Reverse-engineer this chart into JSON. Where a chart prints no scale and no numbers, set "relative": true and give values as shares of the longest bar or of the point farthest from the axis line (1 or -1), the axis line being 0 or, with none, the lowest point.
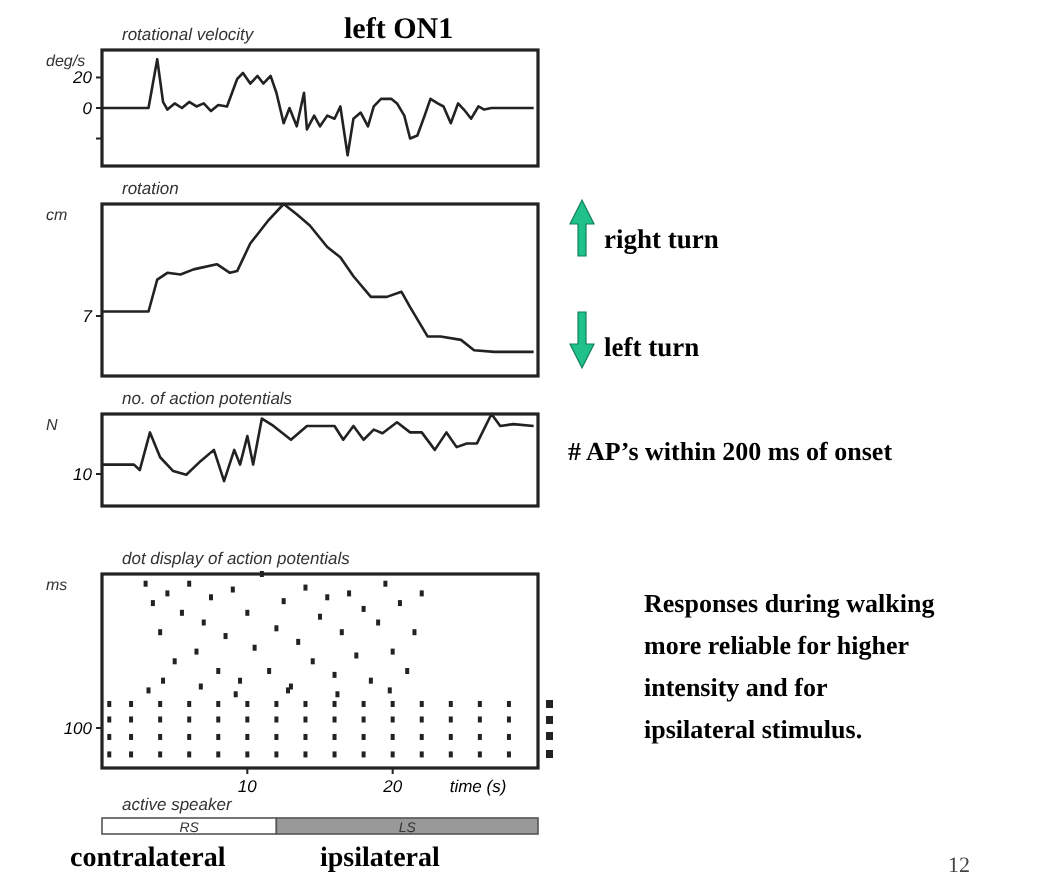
{
  "chart_data": [
    {
      "type": "line",
      "title": "rotational velocity",
      "ylabel": "deg/s",
      "annotations": [
        "left ON1"
      ],
      "xlim": [
        0,
        30
      ],
      "ylim": [
        -38,
        38
      ],
      "yticks": [
        {
          "value": -20,
          "label": null
        },
        0,
        20
      ],
      "tick_labels": "y",
      "color": "#222222",
      "x": [
        0,
        3.2,
        3.8,
        4.2,
        4.5,
        5,
        5.5,
        6,
        6.5,
        7,
        7.5,
        8,
        8.6,
        9.3,
        9.7,
        10.2,
        10.7,
        11.1,
        11.6,
        12.0,
        12.5,
        12.9,
        13.4,
        13.9,
        14.1,
        14.6,
        15,
        15.5,
        16,
        16.4,
        16.9,
        17.3,
        17.8,
        18.3,
        18.7,
        19.2,
        19.9,
        20.3,
        20.8,
        21.2,
        21.7,
        22.2,
        22.6,
        23.1,
        23.5,
        24,
        24.5,
        24.9,
        25.4,
        25.9,
        26.3,
        26.8,
        29.7
      ],
      "values": [
        0,
        0,
        32,
        4,
        -1,
        3,
        0,
        4,
        1,
        3,
        -2,
        2,
        1,
        19,
        23,
        16,
        21,
        16,
        21,
        10,
        -10,
        0,
        -12,
        10,
        -14,
        -5,
        -12,
        -5,
        -7,
        1,
        -31,
        -7,
        -3,
        -12,
        1,
        6,
        6,
        3,
        -5,
        -20,
        -18,
        -5,
        6,
        3,
        1,
        -10,
        3,
        -1,
        -7,
        1,
        -1,
        0,
        0
      ]
    },
    {
      "type": "line",
      "title": "rotation",
      "ylabel": "cm",
      "relative": true,
      "xlim": [
        0,
        30
      ],
      "color": "#222222",
      "annotations": [
        "7",
        "right turn",
        "left turn"
      ],
      "x": [
        0,
        3.2,
        3.8,
        4.5,
        5.4,
        6.3,
        7.9,
        8.8,
        9.3,
        10.2,
        11.4,
        12.5,
        13.4,
        14.3,
        15.5,
        16.4,
        17.3,
        18.5,
        19.6,
        20.6,
        21.2,
        22.4,
        23.3,
        24.7,
        25.6,
        27,
        29.7
      ],
      "values": [
        0.375,
        0.375,
        0.56,
        0.6,
        0.59,
        0.62,
        0.65,
        0.6,
        0.61,
        0.77,
        0.9,
        1,
        0.94,
        0.875,
        0.75,
        0.69,
        0.58,
        0.46,
        0.46,
        0.49,
        0.4,
        0.23,
        0.23,
        0.21,
        0.15,
        0.14,
        0.14
      ]
    },
    {
      "type": "line",
      "title": "no. of action potentials",
      "ylabel": "N",
      "relative": true,
      "xlim": [
        0,
        30
      ],
      "color": "#222222",
      "annotations": [
        "10",
        "# AP’s within 200 ms of onset"
      ],
      "x": [
        0,
        2.2,
        2.6,
        3.3,
        4.0,
        4.9,
        5.8,
        6.8,
        7.7,
        8.4,
        9.1,
        9.5,
        10,
        10.4,
        11,
        11.8,
        13,
        14.1,
        16,
        16.6,
        17.3,
        18,
        18.7,
        19.3,
        20.3,
        21.2,
        22,
        22.9,
        23.7,
        24.4,
        25.1,
        25.8,
        26.8,
        27.4,
        28.3,
        29.7
      ],
      "values": [
        0.45,
        0.45,
        0.39,
        0.8,
        0.53,
        0.38,
        0.34,
        0.49,
        0.61,
        0.27,
        0.61,
        0.45,
        0.76,
        0.45,
        0.95,
        0.87,
        0.72,
        0.87,
        0.87,
        0.72,
        0.87,
        0.72,
        0.83,
        0.79,
        0.91,
        0.8,
        0.8,
        0.61,
        0.8,
        0.64,
        0.68,
        0.68,
        1,
        0.87,
        0.89,
        0.87
      ]
    },
    {
      "type": "scatter",
      "title": "dot display of action potentials",
      "ylabel": "ms",
      "xlabel": "time (s)",
      "relative": true,
      "tick_labels": "x",
      "xlim": [
        0,
        30
      ],
      "xticks": [
        10,
        20
      ],
      "marker": "square",
      "color": "#222222",
      "annotations": [
        "100",
        "Responses during walking more reliable for higher intensity and for ipsilateral stimulus.",
        "12"
      ],
      "x": [
        0.5,
        2,
        4,
        6,
        8,
        10,
        12,
        14,
        16,
        18,
        20,
        22,
        24,
        26,
        28,
        0.5,
        2,
        4,
        6,
        8,
        10,
        12,
        14,
        16,
        18,
        20,
        22,
        24,
        26,
        28,
        0.5,
        2,
        4,
        6,
        8,
        10,
        12,
        14,
        16,
        18,
        20,
        22,
        24,
        26,
        28,
        0.5,
        2,
        4,
        6,
        8,
        10,
        12,
        14,
        16,
        18,
        20,
        22,
        24,
        26,
        28,
        3,
        3.5,
        4,
        4.5,
        5,
        5.5,
        6,
        6.5,
        7,
        7.5,
        8,
        8.5,
        9,
        9.5,
        10,
        10.5,
        11,
        11.5,
        12,
        12.5,
        13,
        13.5,
        14,
        14.5,
        15,
        15.5,
        16,
        16.5,
        17,
        17.5,
        18,
        18.5,
        19,
        19.5,
        20,
        20.5,
        21,
        21.5,
        22,
        3.2,
        4.2,
        6.8,
        9.2,
        12.8,
        16.2,
        19.8
      ],
      "values": [
        0.33,
        0.33,
        0.33,
        0.33,
        0.33,
        0.33,
        0.33,
        0.33,
        0.33,
        0.33,
        0.33,
        0.33,
        0.33,
        0.33,
        0.33,
        0.25,
        0.25,
        0.25,
        0.25,
        0.25,
        0.25,
        0.25,
        0.25,
        0.25,
        0.25,
        0.25,
        0.25,
        0.25,
        0.25,
        0.25,
        0.16,
        0.16,
        0.16,
        0.16,
        0.16,
        0.16,
        0.16,
        0.16,
        0.16,
        0.16,
        0.16,
        0.16,
        0.16,
        0.16,
        0.16,
        0.07,
        0.07,
        0.07,
        0.07,
        0.07,
        0.07,
        0.07,
        0.07,
        0.07,
        0.07,
        0.07,
        0.07,
        0.07,
        0.07,
        0.07,
        0.95,
        0.85,
        0.7,
        0.9,
        0.55,
        0.8,
        0.95,
        0.6,
        0.75,
        0.88,
        0.5,
        0.68,
        0.92,
        0.45,
        0.8,
        0.62,
        1,
        0.5,
        0.72,
        0.86,
        0.42,
        0.65,
        0.93,
        0.55,
        0.78,
        0.88,
        0.48,
        0.7,
        0.9,
        0.58,
        0.82,
        0.45,
        0.75,
        0.95,
        0.6,
        0.85,
        0.5,
        0.7,
        0.9,
        0.4,
        0.45,
        0.42,
        0.38,
        0.4,
        0.38,
        0.4
      ]
    },
    {
      "type": "bar",
      "title": "active speaker",
      "orientation": "horizontal",
      "stacked": true,
      "xlim": [
        0,
        30
      ],
      "categories": [
        null
      ],
      "series": [
        {
          "name": "RS",
          "color": "#ffffff",
          "values": [
            12
          ]
        },
        {
          "name": "LS",
          "color": "#999999",
          "values": [
            18
          ]
        }
      ],
      "annotations": [
        "contralateral",
        "ipsilateral"
      ]
    }
  ]
}
